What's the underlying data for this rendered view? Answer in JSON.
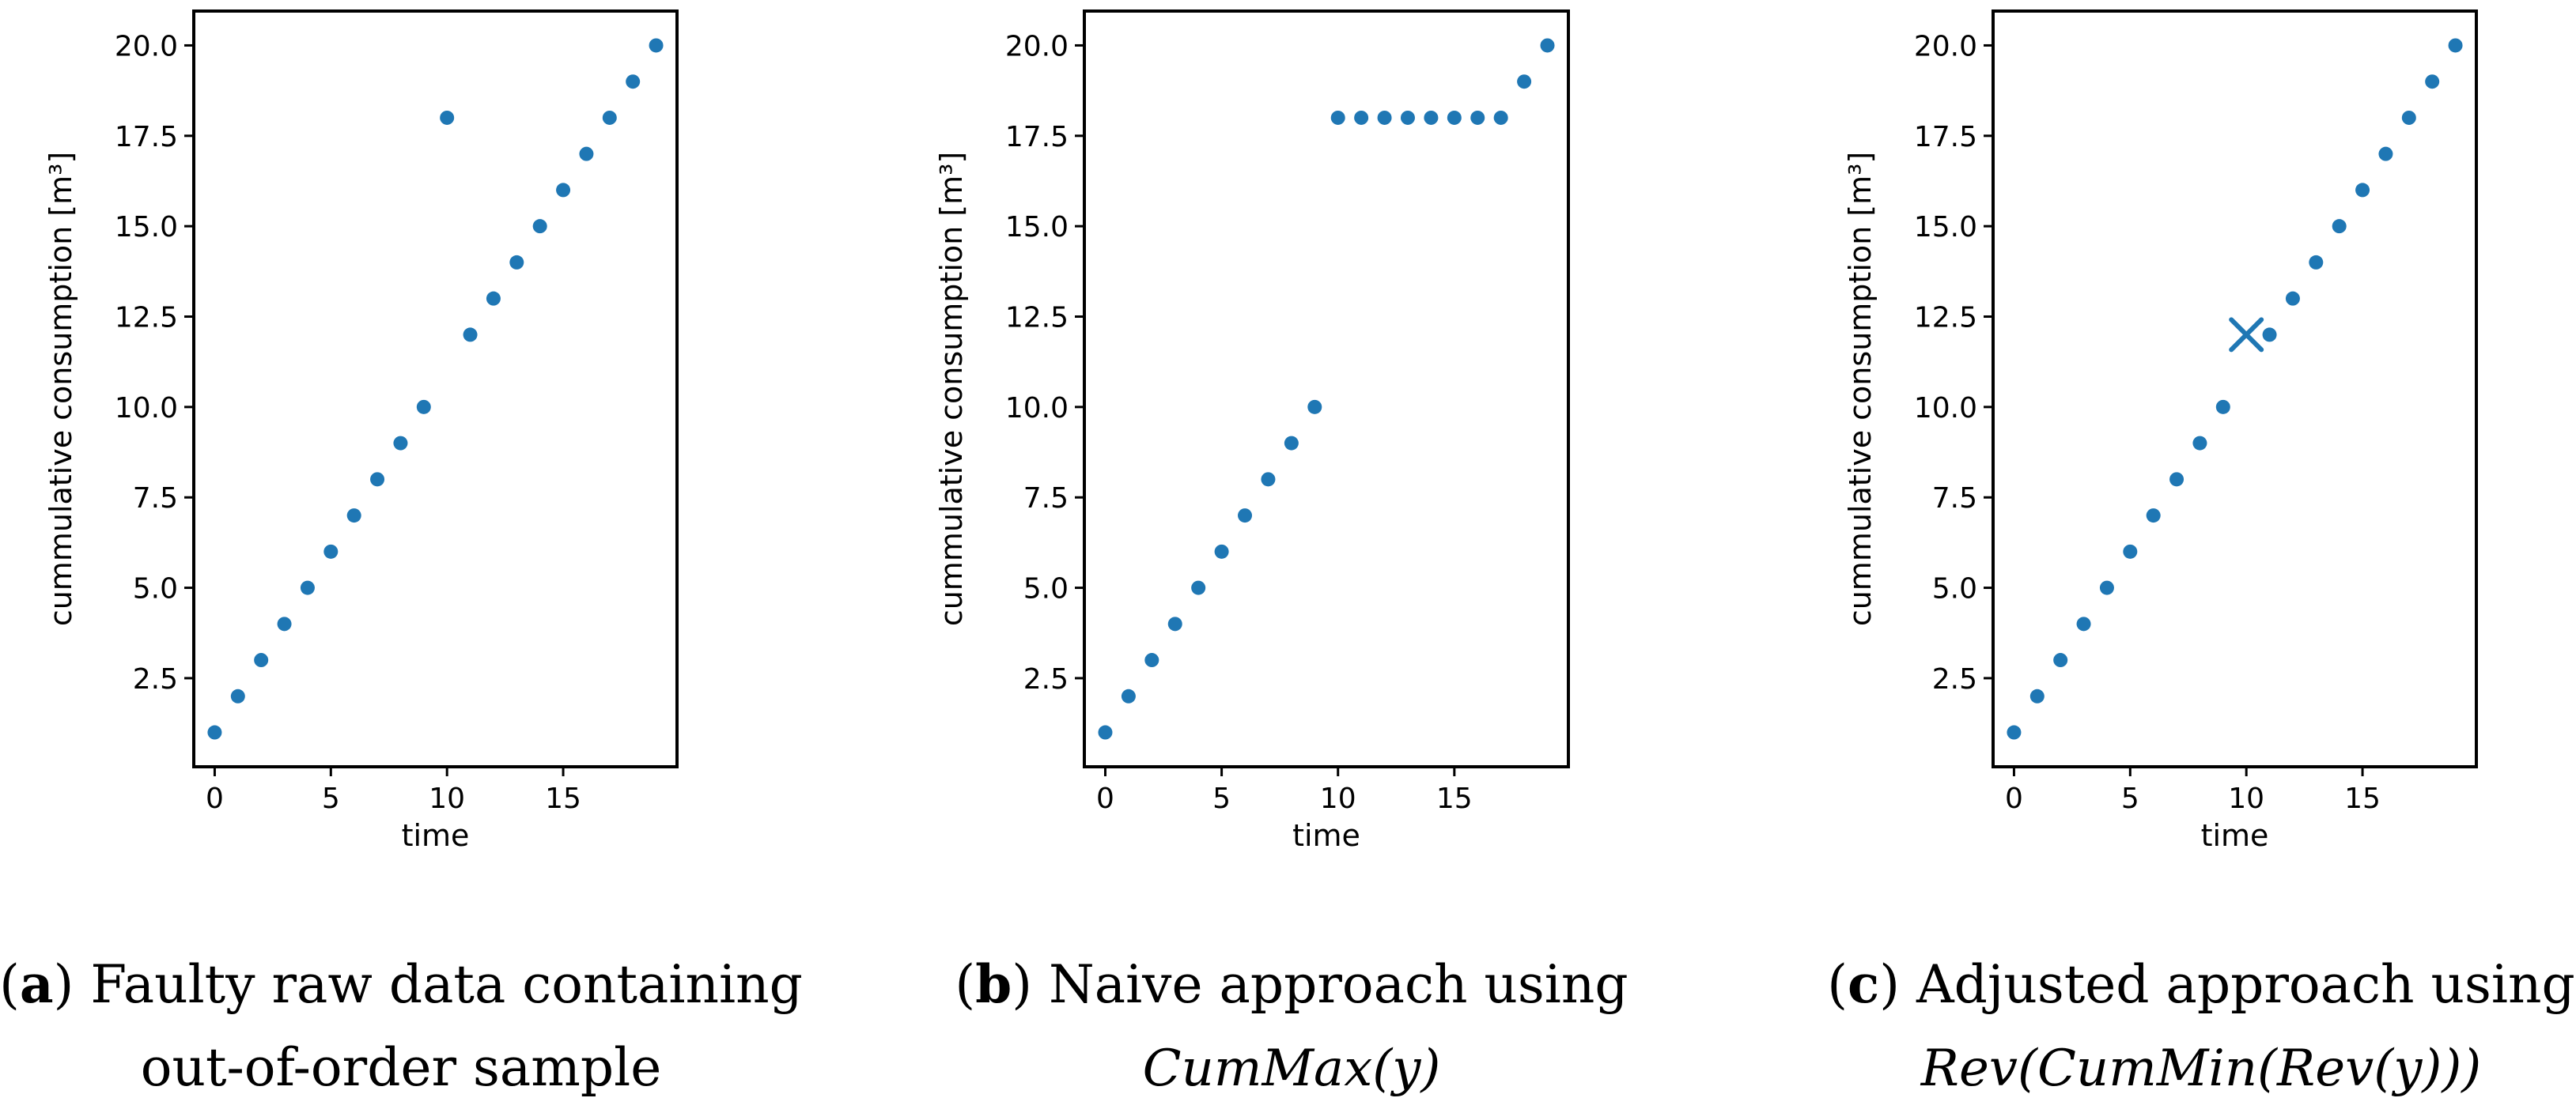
{
  "colors": {
    "marker": "#1f77b4",
    "axis": "#000000"
  },
  "chart_data": [
    {
      "type": "scatter",
      "id": "a",
      "xlabel": "time",
      "ylabel": "cummulative consumption [m³]",
      "xlim": [
        -0.9,
        19.9
      ],
      "ylim": [
        0.05,
        20.95
      ],
      "xticks": [
        "0",
        "5",
        "10",
        "15"
      ],
      "yticks": [
        "2.5",
        "5.0",
        "7.5",
        "10.0",
        "12.5",
        "15.0",
        "17.5",
        "20.0"
      ],
      "x": [
        0,
        1,
        2,
        3,
        4,
        5,
        6,
        7,
        8,
        9,
        10,
        11,
        12,
        13,
        14,
        15,
        16,
        17,
        18,
        19
      ],
      "y": [
        1,
        2,
        3,
        4,
        5,
        6,
        7,
        8,
        9,
        10,
        18,
        12,
        13,
        14,
        15,
        16,
        17,
        18,
        19,
        20
      ],
      "highlight": null,
      "caption": {
        "letter": "a",
        "line1": " Faulty raw data containing",
        "line2": "out-of-order sample"
      }
    },
    {
      "type": "scatter",
      "id": "b",
      "xlabel": "time",
      "ylabel": "cummulative consumption [m³]",
      "xlim": [
        -0.9,
        19.9
      ],
      "ylim": [
        0.05,
        20.95
      ],
      "xticks": [
        "0",
        "5",
        "10",
        "15"
      ],
      "yticks": [
        "2.5",
        "5.0",
        "7.5",
        "10.0",
        "12.5",
        "15.0",
        "17.5",
        "20.0"
      ],
      "x": [
        0,
        1,
        2,
        3,
        4,
        5,
        6,
        7,
        8,
        9,
        10,
        11,
        12,
        13,
        14,
        15,
        16,
        17,
        18,
        19
      ],
      "y": [
        1,
        2,
        3,
        4,
        5,
        6,
        7,
        8,
        9,
        10,
        18,
        18,
        18,
        18,
        18,
        18,
        18,
        18,
        19,
        20
      ],
      "highlight": null,
      "caption": {
        "letter": "b",
        "line1": " Naive approach using",
        "line2": "CumMax(y)"
      }
    },
    {
      "type": "scatter",
      "id": "c",
      "xlabel": "time",
      "ylabel": "cummulative consumption [m³]",
      "xlim": [
        -0.9,
        19.9
      ],
      "ylim": [
        0.05,
        20.95
      ],
      "xticks": [
        "0",
        "5",
        "10",
        "15"
      ],
      "yticks": [
        "2.5",
        "5.0",
        "7.5",
        "10.0",
        "12.5",
        "15.0",
        "17.5",
        "20.0"
      ],
      "x": [
        0,
        1,
        2,
        3,
        4,
        5,
        6,
        7,
        8,
        9,
        11,
        12,
        13,
        14,
        15,
        16,
        17,
        18,
        19
      ],
      "y": [
        1,
        2,
        3,
        4,
        5,
        6,
        7,
        8,
        9,
        10,
        12,
        13,
        14,
        15,
        16,
        17,
        18,
        19,
        20
      ],
      "highlight": {
        "x": 10,
        "y": 12
      },
      "caption": {
        "letter": "c",
        "line1": " Adjusted approach using",
        "line2": "Rev(CumMin(Rev(y)))"
      }
    }
  ]
}
